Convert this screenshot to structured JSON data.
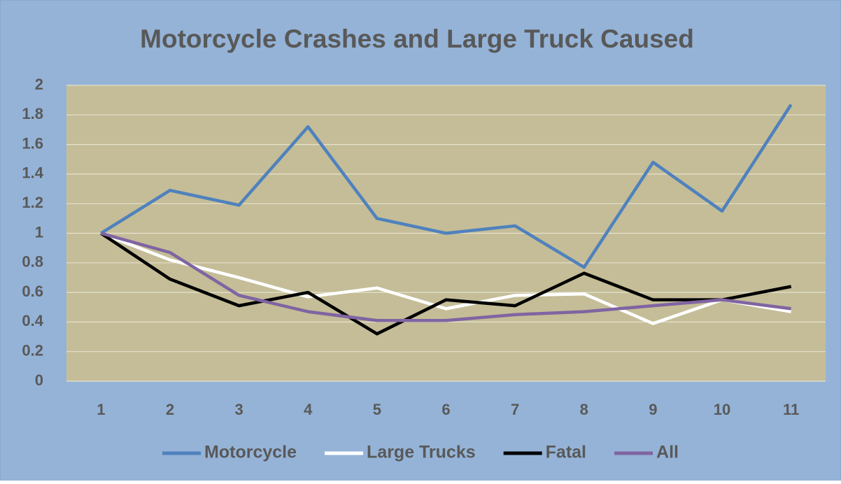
{
  "chart_data": {
    "type": "line",
    "title": "Motorcycle Crashes and Large Truck Caused",
    "categories": [
      "1",
      "2",
      "3",
      "4",
      "5",
      "6",
      "7",
      "8",
      "9",
      "10",
      "11"
    ],
    "series": [
      {
        "name": "Motorcycle",
        "color": "#4f81bd",
        "values": [
          1.0,
          1.29,
          1.19,
          1.72,
          1.1,
          1.0,
          1.05,
          0.77,
          1.48,
          1.15,
          1.87
        ]
      },
      {
        "name": "Large Trucks",
        "color": "#ffffff",
        "values": [
          1.0,
          0.82,
          0.7,
          0.57,
          0.63,
          0.49,
          0.58,
          0.59,
          0.39,
          0.55,
          0.47
        ]
      },
      {
        "name": "Fatal",
        "color": "#000000",
        "values": [
          1.0,
          0.69,
          0.51,
          0.6,
          0.32,
          0.55,
          0.51,
          0.73,
          0.55,
          0.55,
          0.64
        ]
      },
      {
        "name": "All",
        "color": "#8064a2",
        "values": [
          1.0,
          0.87,
          0.58,
          0.47,
          0.41,
          0.41,
          0.45,
          0.47,
          0.51,
          0.55,
          0.49
        ]
      }
    ],
    "ylim": [
      0,
      2
    ],
    "yticks": [
      0,
      0.2,
      0.4,
      0.6,
      0.8,
      1,
      1.2,
      1.4,
      1.6,
      1.8,
      2
    ],
    "grid": true,
    "legend": "bottom"
  }
}
